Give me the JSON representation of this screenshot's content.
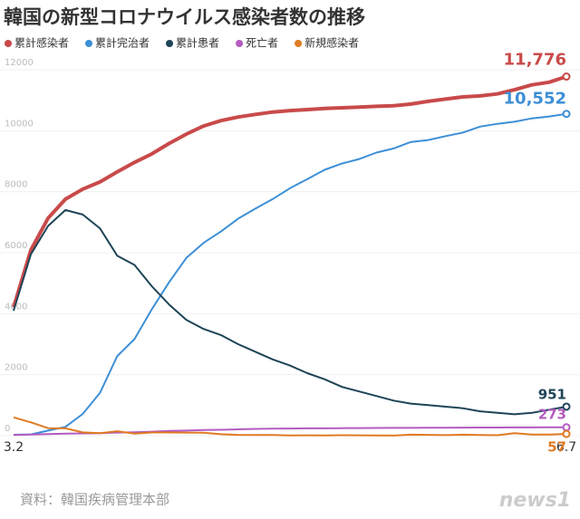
{
  "chart_data": {
    "type": "line",
    "title": "韓国の新型コロナウイルス感染者数の推移",
    "source": "資料：韓国疾病管理本部",
    "watermark": "news1",
    "categories": [
      "3.2",
      null,
      null,
      null,
      null,
      null,
      null,
      null,
      null,
      null,
      null,
      null,
      null,
      null,
      null,
      null,
      null,
      null,
      null,
      null,
      null,
      null,
      null,
      null,
      null,
      null,
      null,
      null,
      null,
      null,
      null,
      null,
      "6.7"
    ],
    "series": [
      {
        "name": "累計感染者",
        "color": "#c94a4a",
        "values": [
          4212,
          6088,
          7134,
          7755,
          8086,
          8320,
          8652,
          8961,
          9241,
          9583,
          9887,
          10156,
          10331,
          10450,
          10537,
          10613,
          10661,
          10694,
          10728,
          10752,
          10774,
          10801,
          10822,
          10874,
          10962,
          11037,
          11110,
          11142,
          11206,
          11344,
          11503,
          11590,
          11776
        ],
        "value_labels": [
          null,
          null,
          null,
          null,
          null,
          null,
          null,
          null,
          null,
          null,
          null,
          null,
          null,
          null,
          null,
          null,
          null,
          null,
          null,
          null,
          null,
          null,
          null,
          null,
          null,
          null,
          null,
          null,
          null,
          null,
          null,
          null,
          "11,776"
        ]
      },
      {
        "name": "累計完治者",
        "color": "#3d8fd6",
        "values": [
          30,
          41,
          166,
          288,
          714,
          1401,
          2612,
          3166,
          4144,
          5033,
          5828,
          6325,
          6694,
          7117,
          7447,
          7757,
          8114,
          8411,
          8717,
          8922,
          9072,
          9283,
          9419,
          9632,
          9695,
          9823,
          9938,
          10135,
          10226,
          10295,
          10405,
          10467,
          10552
        ],
        "value_labels": [
          null,
          null,
          null,
          null,
          null,
          null,
          null,
          null,
          null,
          null,
          null,
          null,
          null,
          null,
          null,
          null,
          null,
          null,
          null,
          null,
          null,
          null,
          null,
          null,
          null,
          null,
          null,
          null,
          null,
          null,
          null,
          null,
          "10,552"
        ]
      },
      {
        "name": "累計患者",
        "color": "#1e4457",
        "values": [
          4100,
          5950,
          6880,
          7400,
          7250,
          6800,
          5900,
          5600,
          4900,
          4300,
          3800,
          3500,
          3300,
          3000,
          2750,
          2500,
          2300,
          2050,
          1850,
          1600,
          1450,
          1300,
          1150,
          1050,
          1000,
          950,
          900,
          800,
          750,
          700,
          750,
          850,
          951
        ],
        "value_labels": [
          null,
          null,
          null,
          null,
          null,
          null,
          null,
          null,
          null,
          null,
          null,
          null,
          null,
          null,
          null,
          null,
          null,
          null,
          null,
          null,
          null,
          null,
          null,
          null,
          null,
          null,
          null,
          null,
          null,
          null,
          null,
          null,
          "951"
        ]
      },
      {
        "name": "死亡者",
        "color": "#b45bc0",
        "values": [
          22,
          35,
          50,
          66,
          75,
          84,
          102,
          111,
          131,
          158,
          165,
          183,
          192,
          208,
          222,
          229,
          234,
          240,
          242,
          248,
          250,
          252,
          256,
          256,
          259,
          262,
          263,
          266,
          267,
          269,
          271,
          273,
          273
        ],
        "value_labels": [
          null,
          null,
          null,
          null,
          null,
          null,
          null,
          null,
          null,
          null,
          null,
          null,
          null,
          null,
          null,
          null,
          null,
          null,
          null,
          null,
          null,
          null,
          null,
          null,
          null,
          null,
          null,
          null,
          null,
          null,
          null,
          null,
          "273"
        ]
      },
      {
        "name": "新規感染者",
        "color": "#e07b23",
        "values": [
          600,
          438,
          248,
          242,
          107,
          84,
          147,
          64,
          104,
          105,
          101,
          94,
          47,
          27,
          25,
          22,
          8,
          11,
          10,
          14,
          13,
          8,
          4,
          34,
          26,
          19,
          32,
          20,
          16,
          79,
          35,
          38,
          57
        ],
        "value_labels": [
          null,
          null,
          null,
          null,
          null,
          null,
          null,
          null,
          null,
          null,
          null,
          null,
          null,
          null,
          null,
          null,
          null,
          null,
          null,
          null,
          null,
          null,
          null,
          null,
          null,
          null,
          null,
          null,
          null,
          null,
          null,
          null,
          "57"
        ]
      }
    ],
    "ylim": [
      0,
      12000
    ],
    "yticks": [
      0,
      2000,
      4000,
      6000,
      8000,
      10000,
      12000
    ],
    "grid": true
  }
}
